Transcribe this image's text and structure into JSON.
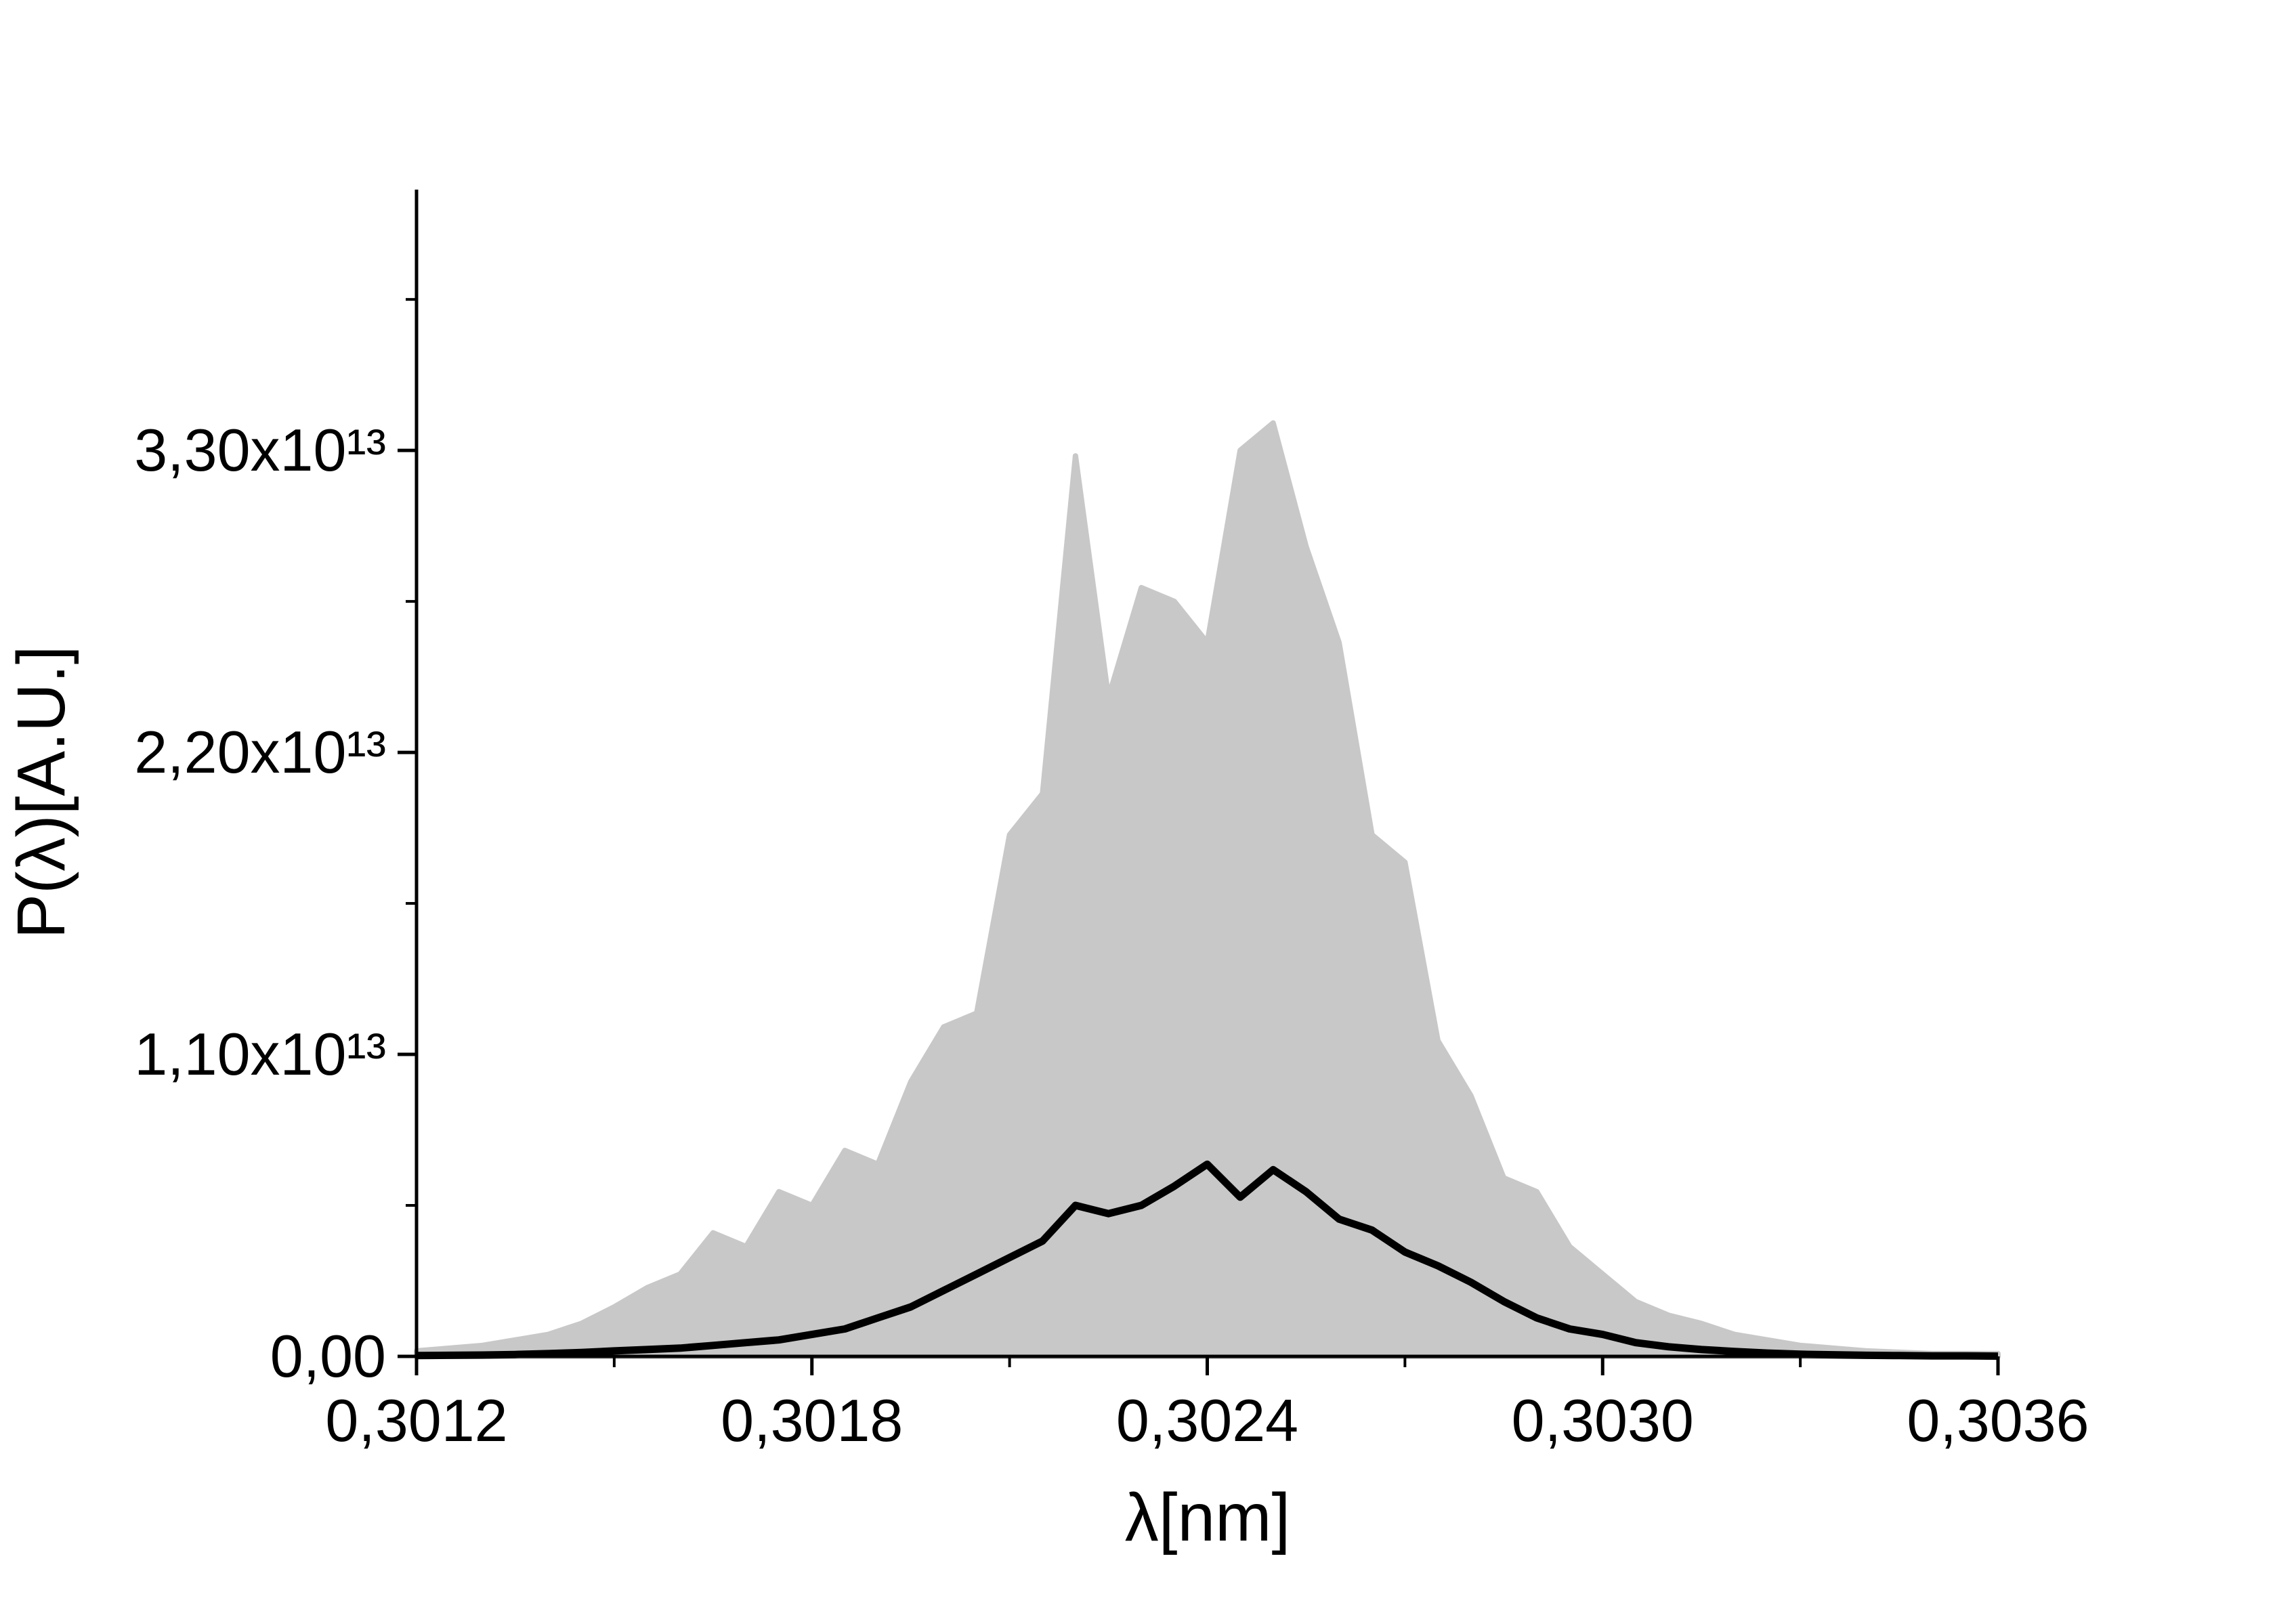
{
  "chart_data": {
    "type": "line",
    "x_label": "λ[nm]",
    "y_label": "P(λ)[A.U.]",
    "x": [
      0.3012,
      0.30125,
      0.3013,
      0.30135,
      0.3014,
      0.30145,
      0.3015,
      0.30155,
      0.3016,
      0.30165,
      0.3017,
      0.30175,
      0.3018,
      0.30185,
      0.3019,
      0.30195,
      0.302,
      0.30205,
      0.3021,
      0.30215,
      0.3022,
      0.30225,
      0.3023,
      0.30235,
      0.3024,
      0.30245,
      0.3025,
      0.30255,
      0.3026,
      0.30265,
      0.3027,
      0.30275,
      0.3028,
      0.30285,
      0.3029,
      0.30295,
      0.303,
      0.30305,
      0.3031,
      0.30315,
      0.3032,
      0.30325,
      0.3033,
      0.30335,
      0.3034,
      0.30345,
      0.3035,
      0.30355,
      0.3036
    ],
    "series": [
      {
        "color": "#c8c8c8",
        "fill": true,
        "values": [
          200000000000.0,
          300000000000.0,
          400000000000.0,
          600000000000.0,
          800000000000.0,
          1200000000000.0,
          1800000000000.0,
          2500000000000.0,
          3000000000000.0,
          4500000000000.0,
          4000000000000.0,
          6000000000000.0,
          5500000000000.0,
          7500000000000.0,
          7000000000000.0,
          10000000000000.0,
          12000000000000.0,
          12500000000000.0,
          19000000000000.0,
          20500000000000.0,
          32800000000000.0,
          24000000000000.0,
          28000000000000.0,
          27500000000000.0,
          26000000000000.0,
          33000000000000.0,
          34000000000000.0,
          29500000000000.0,
          26000000000000.0,
          19000000000000.0,
          18000000000000.0,
          11500000000000.0,
          9500000000000.0,
          6500000000000.0,
          6000000000000.0,
          4000000000000.0,
          3000000000000.0,
          2000000000000.0,
          1500000000000.0,
          1200000000000.0,
          800000000000.0,
          600000000000.0,
          400000000000.0,
          300000000000.0,
          200000000000.0,
          150000000000.0,
          100000000000.0,
          100000000000.0,
          100000000000.0
        ]
      },
      {
        "color": "#000000",
        "fill": false,
        "values": [
          30000000000.0,
          40000000000.0,
          50000000000.0,
          70000000000.0,
          100000000000.0,
          140000000000.0,
          200000000000.0,
          250000000000.0,
          300000000000.0,
          400000000000.0,
          500000000000.0,
          600000000000.0,
          800000000000.0,
          1000000000000.0,
          1400000000000.0,
          1800000000000.0,
          2400000000000.0,
          3000000000000.0,
          3600000000000.0,
          4200000000000.0,
          5500000000000.0,
          5200000000000.0,
          5500000000000.0,
          6200000000000.0,
          7000000000000.0,
          5800000000000.0,
          6800000000000.0,
          6000000000000.0,
          5000000000000.0,
          4600000000000.0,
          3800000000000.0,
          3300000000000.0,
          2700000000000.0,
          2000000000000.0,
          1400000000000.0,
          1000000000000.0,
          800000000000.0,
          500000000000.0,
          350000000000.0,
          250000000000.0,
          180000000000.0,
          120000000000.0,
          80000000000.0,
          60000000000.0,
          40000000000.0,
          30000000000.0,
          20000000000.0,
          20000000000.0,
          10000000000.0
        ]
      }
    ],
    "xlim": [
      0.3012,
      0.3036
    ],
    "xticks": [
      {
        "value": 0.3012,
        "label": "0,3012"
      },
      {
        "value": 0.3018,
        "label": "0,3018"
      },
      {
        "value": 0.3024,
        "label": "0,3024"
      },
      {
        "value": 0.303,
        "label": "0,3030"
      },
      {
        "value": 0.3036,
        "label": "0,3036"
      }
    ],
    "ylim": [
      0,
      42500000000000.0
    ],
    "yticks": [
      {
        "value": 0,
        "label": "0,00"
      },
      {
        "value": 11000000000000.0,
        "label": "1,10x10¹³"
      },
      {
        "value": 22000000000000.0,
        "label": "2,20x10¹³"
      },
      {
        "value": 33000000000000.0,
        "label": "3,30x10¹³"
      }
    ],
    "grid": false
  }
}
